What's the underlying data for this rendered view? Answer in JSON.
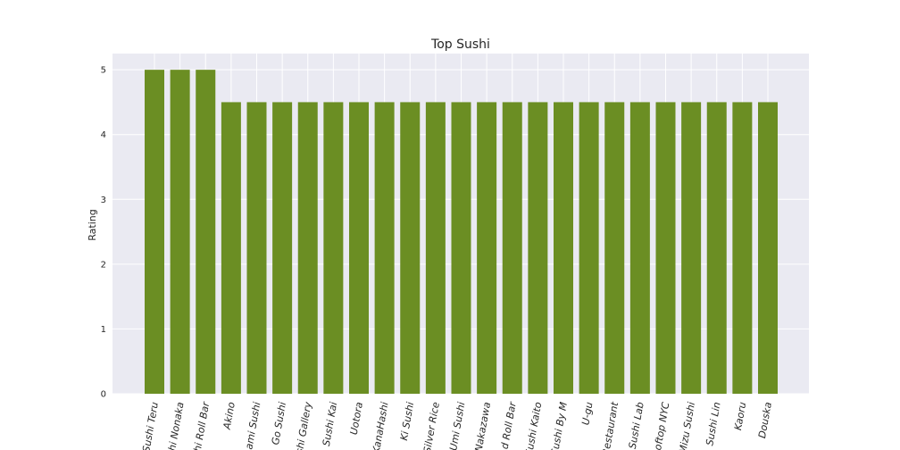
{
  "chart_data": {
    "type": "bar",
    "title": "Top Sushi",
    "xlabel": "",
    "ylabel": "Rating",
    "categories": [
      "Sushi Teru",
      "hi Nonaka",
      "hi Roll Bar",
      "Akino",
      "ami Sushi",
      "Go Sushi",
      "shi Gallery",
      "Sushi Kai",
      "Uotora",
      "KanaHashi",
      "Ki Sushi",
      "Silver Rice",
      "Umi Sushi",
      "Nakazawa",
      "d Roll Bar",
      "Sushi Kaito",
      "Sushi By M",
      "U-gu",
      "Restaurant",
      "Sushi Lab",
      "ooftop NYC",
      "Mizu Sushi",
      "Sushi Lin",
      "Kaoru",
      "Douska"
    ],
    "values": [
      5,
      5,
      5,
      4.5,
      4.5,
      4.5,
      4.5,
      4.5,
      4.5,
      4.5,
      4.5,
      4.5,
      4.5,
      4.5,
      4.5,
      4.5,
      4.5,
      4.5,
      4.5,
      4.5,
      4.5,
      4.5,
      4.5,
      4.5,
      4.5
    ],
    "ylim": [
      0,
      5.25
    ],
    "yticks": [
      0,
      1,
      2,
      3,
      4,
      5
    ],
    "grid": true,
    "colors": {
      "bar": "#6b8e23",
      "plot_background": "#eaeaf2",
      "grid": "#ffffff",
      "text": "#262626"
    }
  }
}
